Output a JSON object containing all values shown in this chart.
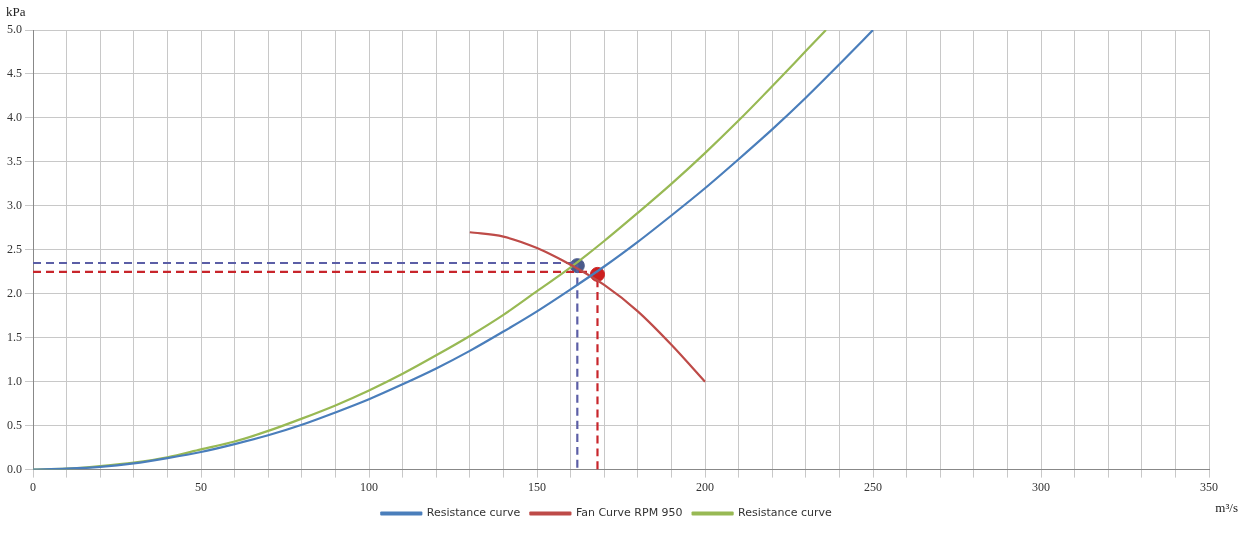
{
  "chart_data": {
    "type": "line",
    "xlabel": "m³/s",
    "ylabel": "kPa",
    "xlim": [
      0,
      350
    ],
    "ylim": [
      0,
      5
    ],
    "xticks": [
      0,
      {
        "value": 10,
        "label": null
      },
      {
        "value": 20,
        "label": null
      },
      {
        "value": 30,
        "label": null
      },
      {
        "value": 40,
        "label": null
      },
      50,
      {
        "value": 60,
        "label": null
      },
      {
        "value": 70,
        "label": null
      },
      {
        "value": 80,
        "label": null
      },
      {
        "value": 90,
        "label": null
      },
      100,
      {
        "value": 110,
        "label": null
      },
      {
        "value": 120,
        "label": null
      },
      {
        "value": 130,
        "label": null
      },
      {
        "value": 140,
        "label": null
      },
      150,
      {
        "value": 160,
        "label": null
      },
      {
        "value": 170,
        "label": null
      },
      {
        "value": 180,
        "label": null
      },
      {
        "value": 190,
        "label": null
      },
      200,
      {
        "value": 210,
        "label": null
      },
      {
        "value": 220,
        "label": null
      },
      {
        "value": 230,
        "label": null
      },
      {
        "value": 240,
        "label": null
      },
      250,
      {
        "value": 260,
        "label": null
      },
      {
        "value": 270,
        "label": null
      },
      {
        "value": 280,
        "label": null
      },
      {
        "value": 290,
        "label": null
      },
      300,
      {
        "value": 310,
        "label": null
      },
      {
        "value": 320,
        "label": null
      },
      {
        "value": 330,
        "label": null
      },
      {
        "value": 340,
        "label": null
      },
      350
    ],
    "yticks": [
      {
        "value": 0,
        "label": "0.0"
      },
      0.5,
      {
        "value": 1,
        "label": "1.0"
      },
      1.5,
      {
        "value": 2,
        "label": "2.0"
      },
      2.5,
      {
        "value": 3,
        "label": "3.0"
      },
      3.5,
      {
        "value": 4,
        "label": "4.0"
      },
      4.5,
      {
        "value": 5,
        "label": "5.0"
      }
    ],
    "grid": true,
    "legend": "bottom",
    "marker": "none",
    "line_style": "solid",
    "series": [
      {
        "name": "Resistance curve",
        "type": "line",
        "color": "#4a7ebb",
        "x": [
          0,
          10,
          20,
          30,
          40,
          50,
          60,
          70,
          80,
          90,
          100,
          110,
          120,
          130,
          140,
          150,
          160,
          170,
          180,
          190,
          200,
          210,
          220,
          230,
          240,
          250
        ],
        "values": [
          0,
          0.01,
          0.03,
          0.07,
          0.13,
          0.2,
          0.29,
          0.39,
          0.51,
          0.65,
          0.8,
          0.97,
          1.15,
          1.35,
          1.57,
          1.8,
          2.05,
          2.31,
          2.59,
          2.89,
          3.2,
          3.53,
          3.87,
          4.23,
          4.61,
          5.0
        ]
      },
      {
        "name": "Fan Curve RPM 950",
        "type": "line",
        "color": "#be4b48",
        "x": [
          130,
          140,
          150,
          160,
          170,
          180,
          190,
          200
        ],
        "values": [
          2.7,
          2.65,
          2.52,
          2.33,
          2.1,
          1.8,
          1.42,
          1.0
        ]
      },
      {
        "name": "Resistance curve",
        "type": "line",
        "color": "#98b954",
        "x": [
          0,
          10,
          20,
          30,
          40,
          50,
          60,
          70,
          80,
          90,
          100,
          110,
          120,
          130,
          140,
          150,
          160,
          170,
          180,
          190,
          200,
          210,
          220,
          230,
          236
        ],
        "values": [
          0,
          0.01,
          0.04,
          0.08,
          0.14,
          0.23,
          0.32,
          0.44,
          0.58,
          0.73,
          0.9,
          1.09,
          1.3,
          1.52,
          1.76,
          2.03,
          2.3,
          2.6,
          2.92,
          3.25,
          3.6,
          3.97,
          4.36,
          4.76,
          5.0
        ]
      },
      {
        "type": "line",
        "line_style": "dashed",
        "color": "#5b5ea6",
        "x": [
          0,
          162,
          162
        ],
        "values": [
          2.35,
          2.35,
          0
        ]
      },
      {
        "type": "line",
        "line_style": "dashed",
        "color": "#c8252b",
        "x": [
          0,
          168,
          168
        ],
        "values": [
          2.25,
          2.25,
          0
        ]
      },
      {
        "type": "scatter",
        "marker": "circle",
        "color": "#4a5a8a",
        "x": [
          162
        ],
        "values": [
          2.32
        ]
      },
      {
        "type": "scatter",
        "marker": "circle",
        "color": "#cc1f1f",
        "x": [
          168
        ],
        "values": [
          2.22
        ]
      }
    ]
  }
}
